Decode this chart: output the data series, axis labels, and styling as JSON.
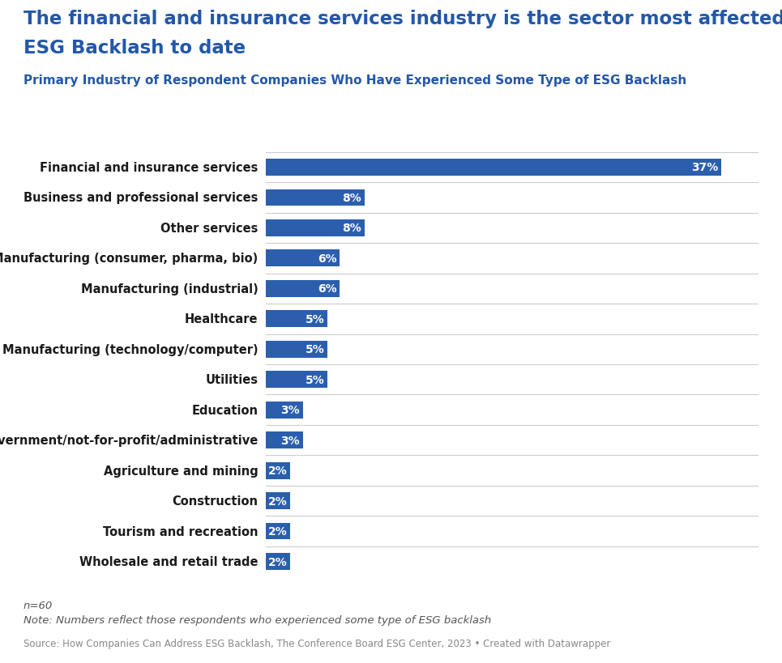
{
  "title_line1": "The financial and insurance services industry is the sector most affected by",
  "title_line2": "ESG Backlash to date",
  "subtitle": "Primary Industry of Respondent Companies Who Have Experienced Some Type of ESG Backlash",
  "categories": [
    "Financial and insurance services",
    "Business and professional services",
    "Other services",
    "Manufacturing (consumer, pharma, bio)",
    "Manufacturing (industrial)",
    "Healthcare",
    "Manufacturing (technology/computer)",
    "Utilities",
    "Education",
    "Government/not-for-profit/administrative",
    "Agriculture and mining",
    "Construction",
    "Tourism and recreation",
    "Wholesale and retail trade"
  ],
  "values": [
    37,
    8,
    8,
    6,
    6,
    5,
    5,
    5,
    3,
    3,
    2,
    2,
    2,
    2
  ],
  "bar_color": "#2b5fad",
  "label_color": "#ffffff",
  "title_color": "#2358a8",
  "subtitle_color": "#2358a8",
  "category_label_color": "#1a1a1a",
  "separator_color": "#cccccc",
  "note_color": "#555555",
  "source_color": "#888888",
  "note_text_line1": "n=60",
  "note_text_line2": "Note: Numbers reflect those respondents who experienced some type of ESG backlash",
  "source_text": "Source: How Companies Can Address ESG Backlash, The Conference Board ESG Center, 2023 • Created with Datawrapper",
  "background_color": "#ffffff",
  "xlim": [
    0,
    40
  ],
  "bar_height": 0.55,
  "title_fontsize": 16.5,
  "subtitle_fontsize": 11,
  "category_fontsize": 10.5,
  "value_fontsize": 10,
  "note_fontsize": 9.5,
  "source_fontsize": 8.5
}
